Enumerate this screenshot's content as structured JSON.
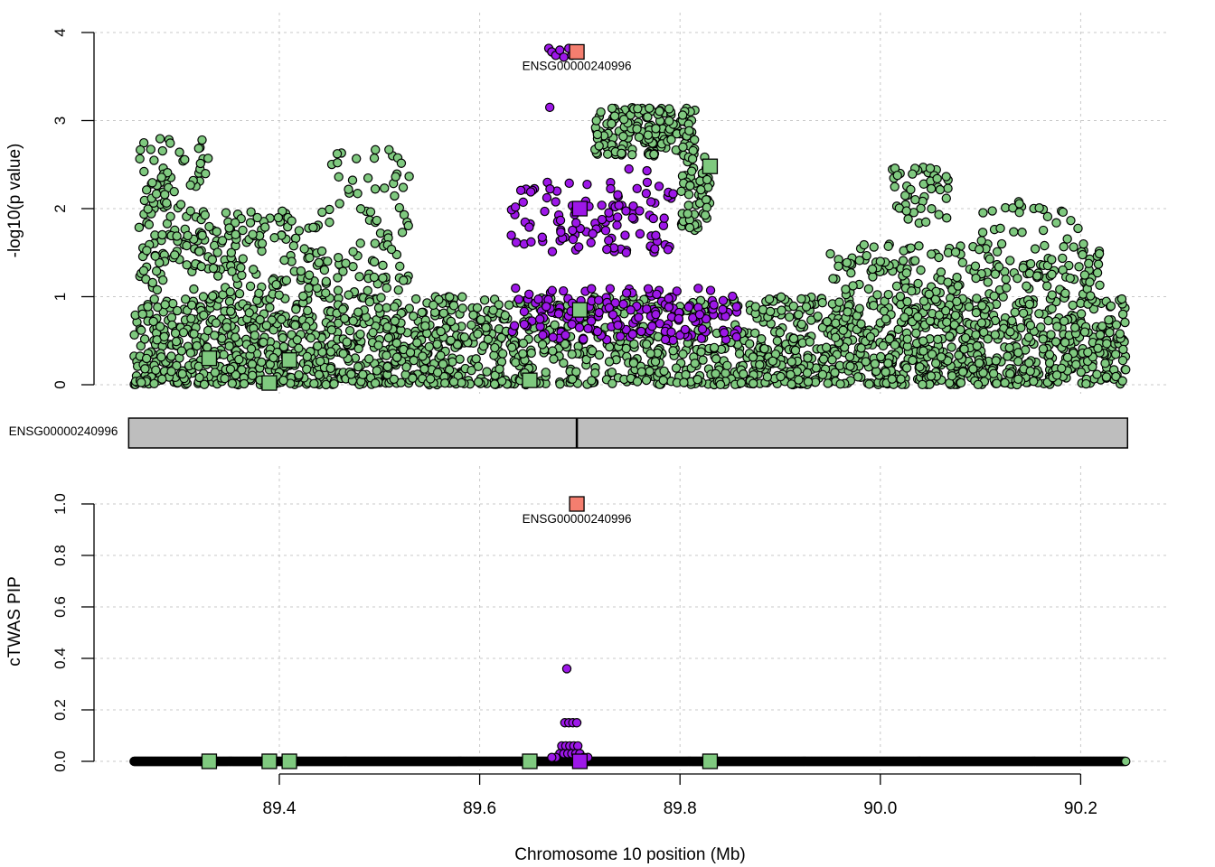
{
  "chart_data": [
    {
      "panel": "top",
      "type": "scatter",
      "ylabel": "-log10(p value)",
      "ylim": [
        0,
        4
      ],
      "yticks": [
        0,
        1,
        2,
        3,
        4
      ],
      "xlim": [
        89.25,
        90.25
      ],
      "grid": true,
      "colors": {
        "snp_green": "#7fc97f",
        "snp_purple": "#9d17e8",
        "focal_gene": "#f47e6f",
        "outline": "#000000"
      },
      "gene_label": "ENSG00000240996",
      "focal_gene": {
        "name": "ENSG00000240996",
        "x": 89.697,
        "y": 3.78
      },
      "genes": [
        {
          "x": 89.33,
          "y": 0.3,
          "group": "green"
        },
        {
          "x": 89.39,
          "y": 0.02,
          "group": "green"
        },
        {
          "x": 89.41,
          "y": 0.28,
          "group": "green"
        },
        {
          "x": 89.65,
          "y": 0.05,
          "group": "green"
        },
        {
          "x": 89.7,
          "y": 0.85,
          "group": "green"
        },
        {
          "x": 89.83,
          "y": 2.48,
          "group": "green"
        },
        {
          "x": 89.7,
          "y": 2.0,
          "group": "purple"
        }
      ],
      "snp_clusters": [
        {
          "group": "green",
          "x0": 89.255,
          "x1": 89.46,
          "y0": 0.0,
          "y1": 1.0,
          "n": 500
        },
        {
          "group": "green",
          "x0": 89.26,
          "x1": 89.33,
          "y0": 1.0,
          "y1": 2.8,
          "n": 130
        },
        {
          "group": "green",
          "x0": 89.33,
          "x1": 89.45,
          "y0": 1.0,
          "y1": 2.0,
          "n": 130
        },
        {
          "group": "green",
          "x0": 89.45,
          "x1": 89.53,
          "y0": 1.0,
          "y1": 2.7,
          "n": 80
        },
        {
          "group": "green",
          "x0": 89.46,
          "x1": 89.64,
          "y0": 0.0,
          "y1": 1.0,
          "n": 400
        },
        {
          "group": "green",
          "x0": 89.715,
          "x1": 89.815,
          "y0": 2.6,
          "y1": 3.15,
          "n": 180
        },
        {
          "group": "green",
          "x0": 89.8,
          "x1": 89.83,
          "y0": 1.75,
          "y1": 2.6,
          "n": 60
        },
        {
          "group": "green",
          "x0": 89.64,
          "x1": 89.87,
          "y0": 0.0,
          "y1": 1.0,
          "n": 360
        },
        {
          "group": "green",
          "x0": 89.87,
          "x1": 90.245,
          "y0": 0.0,
          "y1": 1.0,
          "n": 900
        },
        {
          "group": "green",
          "x0": 89.95,
          "x1": 90.22,
          "y0": 1.0,
          "y1": 1.6,
          "n": 180
        },
        {
          "group": "green",
          "x0": 90.01,
          "x1": 90.07,
          "y0": 1.8,
          "y1": 2.5,
          "n": 45
        },
        {
          "group": "green",
          "x0": 90.1,
          "x1": 90.2,
          "y0": 1.6,
          "y1": 2.1,
          "n": 25
        },
        {
          "group": "purple",
          "x0": 89.63,
          "x1": 89.86,
          "y0": 0.5,
          "y1": 1.1,
          "n": 170
        },
        {
          "group": "purple",
          "x0": 89.63,
          "x1": 89.8,
          "y0": 1.5,
          "y1": 2.3,
          "n": 110
        }
      ],
      "snp_top": [
        {
          "x": 89.669,
          "y": 3.82,
          "group": "purple"
        },
        {
          "x": 89.672,
          "y": 3.78,
          "group": "purple"
        },
        {
          "x": 89.676,
          "y": 3.74,
          "group": "purple"
        },
        {
          "x": 89.68,
          "y": 3.8,
          "group": "purple"
        },
        {
          "x": 89.684,
          "y": 3.72,
          "group": "purple"
        },
        {
          "x": 89.689,
          "y": 3.82,
          "group": "purple"
        },
        {
          "x": 89.692,
          "y": 3.74,
          "group": "purple"
        },
        {
          "x": 89.67,
          "y": 3.15,
          "group": "purple"
        },
        {
          "x": 89.749,
          "y": 2.45,
          "group": "purple"
        },
        {
          "x": 89.767,
          "y": 2.43,
          "group": "purple"
        }
      ]
    },
    {
      "panel": "middle",
      "type": "gene-track",
      "track_label": "ENSG00000240996",
      "x_start": 89.255,
      "x_end": 90.245,
      "focal_x": 89.697,
      "fill": "#bebebe"
    },
    {
      "panel": "bottom",
      "type": "scatter",
      "ylabel": "cTWAS PIP",
      "ylim": [
        0,
        1
      ],
      "yticks": [
        "0.0",
        "0.2",
        "0.4",
        "0.6",
        "0.8",
        "1.0"
      ],
      "xlabel": "Chromosome 10 position (Mb)",
      "xticks": [
        "89.4",
        "89.6",
        "89.8",
        "90.0",
        "90.2"
      ],
      "xlim": [
        89.25,
        90.25
      ],
      "grid": true,
      "gene_label": "ENSG00000240996",
      "focal_gene": {
        "name": "ENSG00000240996",
        "x": 89.697,
        "y": 1.0
      },
      "genes": [
        {
          "x": 89.33,
          "y": 0.0,
          "group": "green"
        },
        {
          "x": 89.39,
          "y": 0.0,
          "group": "green"
        },
        {
          "x": 89.41,
          "y": 0.0,
          "group": "green"
        },
        {
          "x": 89.65,
          "y": 0.0,
          "group": "green"
        },
        {
          "x": 89.83,
          "y": 0.0,
          "group": "green"
        },
        {
          "x": 89.7,
          "y": 0.0,
          "group": "purple"
        }
      ],
      "snps_nonzero": [
        {
          "x": 89.687,
          "y": 0.36
        },
        {
          "x": 89.685,
          "y": 0.15
        },
        {
          "x": 89.689,
          "y": 0.15
        },
        {
          "x": 89.693,
          "y": 0.15
        },
        {
          "x": 89.697,
          "y": 0.15
        },
        {
          "x": 89.682,
          "y": 0.06
        },
        {
          "x": 89.686,
          "y": 0.06
        },
        {
          "x": 89.69,
          "y": 0.06
        },
        {
          "x": 89.694,
          "y": 0.06
        },
        {
          "x": 89.698,
          "y": 0.06
        },
        {
          "x": 89.68,
          "y": 0.03
        },
        {
          "x": 89.684,
          "y": 0.03
        },
        {
          "x": 89.688,
          "y": 0.03
        },
        {
          "x": 89.692,
          "y": 0.03
        },
        {
          "x": 89.696,
          "y": 0.03
        },
        {
          "x": 89.7,
          "y": 0.03
        },
        {
          "x": 89.676,
          "y": 0.015
        },
        {
          "x": 89.704,
          "y": 0.015
        },
        {
          "x": 89.708,
          "y": 0.015
        },
        {
          "x": 89.672,
          "y": 0.015
        }
      ],
      "snp_baseline": {
        "x0": 89.255,
        "x1": 90.245,
        "n": 1400,
        "purple_x0": 89.63,
        "purple_x1": 89.86
      }
    }
  ]
}
